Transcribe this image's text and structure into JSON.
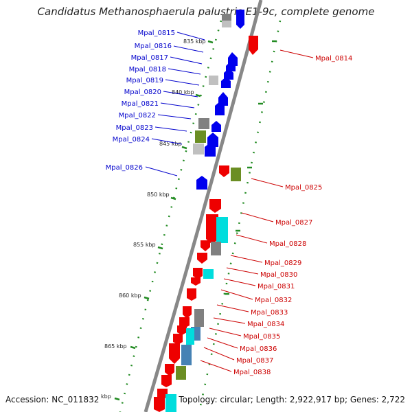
{
  "title": "Candidatus Methanosphaerula palustris E1-9c, complete genome",
  "footer": {
    "accession": "Accession: NC_011832",
    "summary": "Topology: circular; Length: 2,922,917 bp; Genes: 2,722"
  },
  "scale_labels": [
    "835 kbp",
    "840 kbp",
    "845 kbp",
    "850 kbp",
    "855 kbp",
    "860 kbp",
    "865 kbp",
    "kbp"
  ],
  "labels_left": [
    "Mpal_0815",
    "Mpal_0816",
    "Mpal_0817",
    "Mpal_0818",
    "Mpal_0819",
    "Mpal_0820",
    "Mpal_0821",
    "Mpal_0822",
    "Mpal_0823",
    "Mpal_0824",
    "Mpal_0826"
  ],
  "labels_right": [
    "Mpal_0814",
    "Mpal_0825",
    "Mpal_0827",
    "Mpal_0828",
    "Mpal_0829",
    "Mpal_0830",
    "Mpal_0831",
    "Mpal_0832",
    "Mpal_0833",
    "Mpal_0834",
    "Mpal_0835",
    "Mpal_0836",
    "Mpal_0837",
    "Mpal_0838"
  ],
  "colors": {
    "forward": "#0000ee",
    "reverse": "#ee0000",
    "backbone": "#888888",
    "ruler": "#228b22",
    "gray_feature": "#808080",
    "light_gray_feature": "#c0c0c0",
    "olive_feature": "#6b8e23",
    "cyan_feature": "#00dddd",
    "steelblue_feature": "#4682b4"
  }
}
